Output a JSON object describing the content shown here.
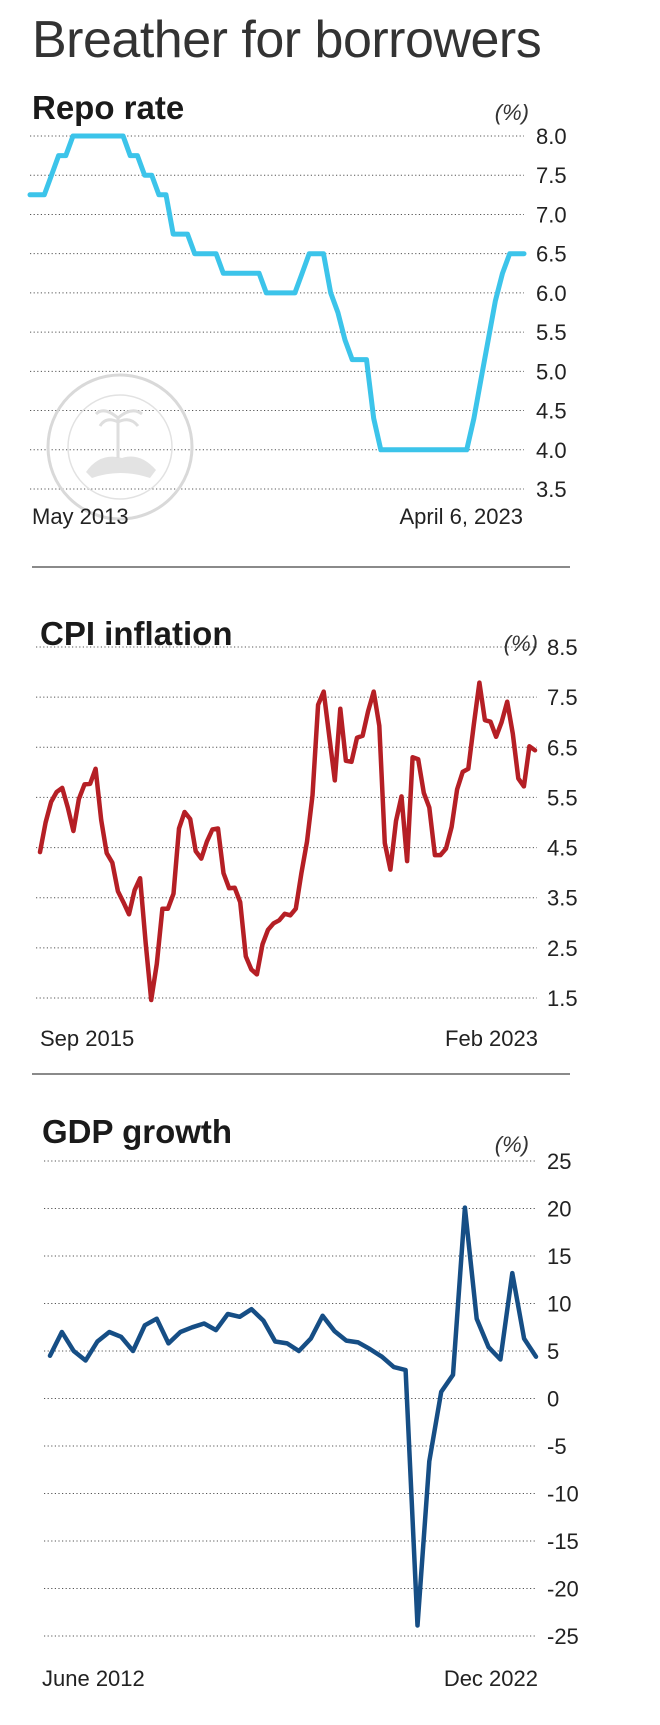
{
  "page": {
    "title": "Breather for borrowers"
  },
  "chart_data": [
    {
      "id": "repo",
      "type": "line",
      "title": "Repo rate",
      "unit": "(%)",
      "color": "#3cc4ea",
      "step": true,
      "ylim": [
        3.5,
        8.0
      ],
      "yticks": [
        "8.0",
        "7.5",
        "7.0",
        "6.5",
        "6.0",
        "5.5",
        "5.0",
        "4.5",
        "4.0",
        "3.5"
      ],
      "x_start_label": "May 2013",
      "x_end_label": "April 6, 2023",
      "values": [
        7.25,
        7.25,
        7.25,
        7.5,
        7.75,
        7.75,
        8.0,
        8.0,
        8.0,
        8.0,
        8.0,
        8.0,
        8.0,
        8.0,
        7.75,
        7.75,
        7.5,
        7.5,
        7.25,
        7.25,
        6.75,
        6.75,
        6.75,
        6.5,
        6.5,
        6.5,
        6.5,
        6.25,
        6.25,
        6.25,
        6.25,
        6.25,
        6.25,
        6.0,
        6.0,
        6.0,
        6.0,
        6.0,
        6.25,
        6.5,
        6.5,
        6.5,
        6.0,
        5.75,
        5.4,
        5.15,
        5.15,
        5.15,
        4.4,
        4.0,
        4.0,
        4.0,
        4.0,
        4.0,
        4.0,
        4.0,
        4.0,
        4.0,
        4.0,
        4.0,
        4.0,
        4.0,
        4.4,
        4.9,
        5.4,
        5.9,
        6.25,
        6.5,
        6.5,
        6.5
      ]
    },
    {
      "id": "cpi",
      "type": "line",
      "title": "CPI inflation",
      "unit": "(%)",
      "color": "#b51f25",
      "ylim": [
        1.5,
        8.5
      ],
      "yticks": [
        "8.5",
        "7.5",
        "6.5",
        "5.5",
        "4.5",
        "3.5",
        "2.5",
        "1.5"
      ],
      "x_start_label": "Sep 2015",
      "x_end_label": "Feb 2023",
      "values": [
        4.41,
        5.0,
        5.41,
        5.61,
        5.69,
        5.3,
        4.83,
        5.47,
        5.76,
        5.77,
        6.07,
        5.05,
        4.39,
        4.2,
        3.63,
        3.41,
        3.17,
        3.65,
        3.89,
        2.59,
        1.46,
        2.18,
        3.28,
        3.28,
        3.58,
        4.88,
        5.21,
        5.07,
        4.43,
        4.28,
        4.62,
        4.86,
        4.88,
        3.99,
        3.69,
        3.7,
        3.41,
        2.33,
        2.07,
        1.97,
        2.57,
        2.86,
        2.99,
        3.05,
        3.18,
        3.15,
        3.28,
        3.99,
        4.62,
        5.54,
        7.35,
        7.61,
        6.73,
        5.84,
        7.27,
        6.23,
        6.21,
        6.69,
        6.73,
        7.22,
        7.61,
        6.93,
        4.59,
        4.06,
        5.03,
        5.52,
        4.23,
        6.3,
        6.26,
        5.59,
        5.3,
        4.35,
        4.35,
        4.48,
        4.91,
        5.66,
        6.01,
        6.07,
        6.95,
        7.79,
        7.04,
        7.01,
        6.71,
        7.0,
        7.41,
        6.77,
        5.88,
        5.72,
        6.52,
        6.44
      ]
    },
    {
      "id": "gdp",
      "type": "line",
      "title": "GDP growth",
      "unit": "(%)",
      "color": "#164e85",
      "ylim": [
        -25,
        25
      ],
      "yticks": [
        "25",
        "20",
        "15",
        "10",
        "5",
        "0",
        "-5",
        "-10",
        "-15",
        "-20",
        "-25"
      ],
      "x_start_label": "June 2012",
      "x_end_label": "Dec 2022",
      "values": [
        4.5,
        7.0,
        5.0,
        4.0,
        6.0,
        7.0,
        6.5,
        5.0,
        7.7,
        8.4,
        5.8,
        7.0,
        7.5,
        7.9,
        7.2,
        8.9,
        8.6,
        9.4,
        8.2,
        6.0,
        5.8,
        5.0,
        6.3,
        8.7,
        7.1,
        6.1,
        5.9,
        5.2,
        4.4,
        3.3,
        3.0,
        -23.9,
        -6.6,
        0.7,
        2.5,
        20.1,
        8.4,
        5.4,
        4.1,
        13.2,
        6.3,
        4.4
      ]
    }
  ]
}
